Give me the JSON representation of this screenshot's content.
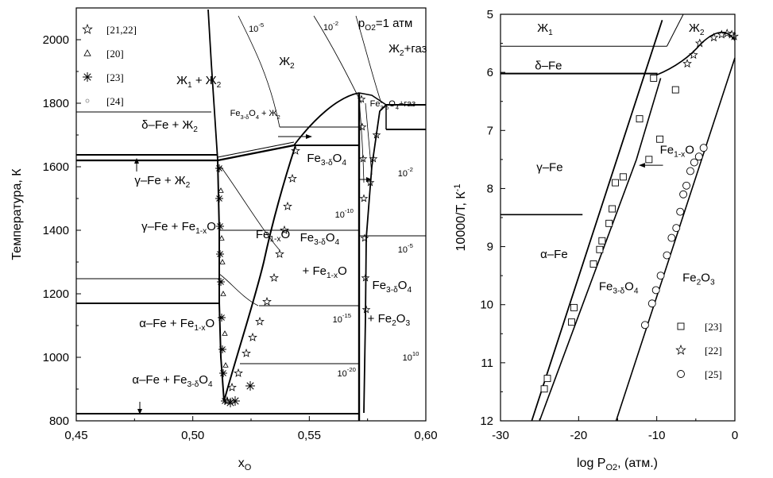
{
  "chart_data": [
    {
      "type": "phase-diagram",
      "xlabel": "x",
      "xlabel_sub": "O",
      "ylabel": "Температура, К",
      "xlim": [
        0.45,
        0.6
      ],
      "ylim": [
        800,
        2100
      ],
      "x_ticks": [
        "0,45",
        "0,50",
        "0,55",
        "0,60"
      ],
      "x_tick_values": [
        0.45,
        0.5,
        0.55,
        0.6
      ],
      "y_ticks": [
        "800",
        "1000",
        "1200",
        "1400",
        "1600",
        "1800",
        "2000"
      ],
      "y_tick_values": [
        800,
        1000,
        1200,
        1400,
        1600,
        1800,
        2000
      ],
      "legend": [
        {
          "marker": "star",
          "label": "[21,22]"
        },
        {
          "marker": "triangle",
          "label": "[20]"
        },
        {
          "marker": "asterisk",
          "label": "[23]"
        },
        {
          "marker": "dot",
          "label": "[24]"
        }
      ],
      "region_labels": [
        {
          "text": "Ж",
          "sub": "1",
          "text2": " + Ж",
          "sub2": "2",
          "x": 0.493,
          "y": 1860
        },
        {
          "text": "δ–Fe + Ж",
          "sub": "2",
          "x": 0.478,
          "y": 1720
        },
        {
          "text": "γ–Fe + Ж",
          "sub": "2",
          "x": 0.475,
          "y": 1545
        },
        {
          "text": "γ–Fe + Fe",
          "sub": "1-x",
          "text2": "O",
          "x": 0.478,
          "y": 1400
        },
        {
          "text": "α–Fe + Fe",
          "sub": "1-x",
          "text2": "O",
          "x": 0.477,
          "y": 1095
        },
        {
          "text": "α–Fe + Fe",
          "sub": "3-δ",
          "text2": "O",
          "sub2": "4",
          "x": 0.474,
          "y": 918
        },
        {
          "text": "Ж",
          "sub": "2",
          "x": 0.537,
          "y": 1920
        },
        {
          "text": "Fe",
          "sub": "1-x",
          "text2": "O",
          "x": 0.527,
          "y": 1375
        },
        {
          "text": "Fe",
          "sub": "3-δ",
          "text2": "O",
          "sub2": "4",
          "x": 0.549,
          "y": 1615
        },
        {
          "text": "Fe",
          "sub": "3-δ",
          "text2": "O",
          "sub2": "4",
          "x": 0.546,
          "y": 1365
        },
        {
          "text": "+ Fe",
          "sub": "1-x",
          "text2": "O",
          "x": 0.547,
          "y": 1260
        },
        {
          "text": "Fe",
          "sub": "3-δ",
          "text2": "O",
          "sub2": "4",
          "x": 0.577,
          "y": 1215
        },
        {
          "text": "+ Fe",
          "sub": "2",
          "text2": "O",
          "sub2": "3",
          "x": 0.575,
          "y": 1110
        },
        {
          "text": "Ж",
          "sub": "2",
          "text2": "+газ",
          "x": 0.584,
          "y": 1960
        },
        {
          "text": "p",
          "sub": "O2",
          "text2": "=1 атм",
          "x": 0.571,
          "y": 2040
        }
      ],
      "small_labels": [
        {
          "text": "Fe",
          "sub": "3-δ",
          "text2": "O",
          "sub2": "4",
          "text3": " + Ж",
          "sub3": "2",
          "x": 0.516,
          "y": 1760
        },
        {
          "text": "Fe",
          "sub": "3-δ",
          "text2": "O",
          "sub2": "4",
          "text3": "+газ",
          "x": 0.576,
          "y": 1790
        }
      ],
      "isobar_labels": [
        {
          "text": "10",
          "sup": "-5",
          "x": 0.524,
          "y": 2025
        },
        {
          "text": "10",
          "sup": "-2",
          "x": 0.556,
          "y": 2030
        },
        {
          "text": "10",
          "sup": "-10",
          "x": 0.561,
          "y": 1440
        },
        {
          "text": "10",
          "sup": "-15",
          "x": 0.56,
          "y": 1110
        },
        {
          "text": "10",
          "sup": "-20",
          "x": 0.562,
          "y": 940
        },
        {
          "text": "10",
          "sup": "-2",
          "x": 0.588,
          "y": 1570
        },
        {
          "text": "10",
          "sup": "-5",
          "x": 0.588,
          "y": 1330
        },
        {
          "text": "10",
          "sup": "10",
          "x": 0.59,
          "y": 990
        }
      ]
    },
    {
      "type": "line",
      "xlabel": "log P",
      "xlabel_sub": "O2",
      "xlabel_suffix": ", (атм.)",
      "ylabel": "10000/T, К",
      "ylabel_sup": "-1",
      "xlim": [
        -30,
        0
      ],
      "ylim": [
        5,
        12
      ],
      "y_inverted": true,
      "x_ticks": [
        "-30",
        "-20",
        "-10",
        "0"
      ],
      "x_tick_values": [
        -30,
        -20,
        -10,
        0
      ],
      "y_ticks": [
        "5",
        "6",
        "7",
        "8",
        "9",
        "10",
        "11",
        "12"
      ],
      "y_tick_values": [
        5,
        6,
        7,
        8,
        9,
        10,
        11,
        12
      ],
      "legend": [
        {
          "marker": "square",
          "label": "[23]"
        },
        {
          "marker": "star",
          "label": "[22]"
        },
        {
          "marker": "circle",
          "label": "[25]"
        }
      ],
      "region_labels": [
        {
          "text": "Ж",
          "sub": "1",
          "x": -25.3,
          "y": 5.3
        },
        {
          "text": "Ж",
          "sub": "2",
          "x": -5.9,
          "y": 5.3
        },
        {
          "text": "δ–Fe",
          "x": -25.6,
          "y": 5.95
        },
        {
          "text": "γ–Fe",
          "x": -25.4,
          "y": 7.7
        },
        {
          "text": "α–Fe",
          "x": -24.9,
          "y": 9.2
        },
        {
          "text": "Fe",
          "sub": "1-x",
          "text2": "O",
          "x": -9.6,
          "y": 7.4
        },
        {
          "text": "Fe",
          "sub": "3-δ",
          "text2": "O",
          "sub2": "4",
          "x": -17.4,
          "y": 9.75
        },
        {
          "text": "Fe",
          "sub": "2",
          "text2": "O",
          "sub2": "3",
          "x": -6.7,
          "y": 9.6
        }
      ],
      "phase_transitions_y": [
        5.55,
        6.02,
        8.45
      ],
      "series": [
        {
          "name": "[23]",
          "marker": "square",
          "x": [
            -24.4,
            -24.0,
            -20.9,
            -20.6,
            -18.1,
            -17.3,
            -17.0,
            -16.1,
            -15.7,
            -15.3,
            -14.3,
            -12.2,
            -11.0,
            -10.4,
            -9.6,
            -7.6
          ],
          "y": [
            11.45,
            11.27,
            10.3,
            10.05,
            9.3,
            9.05,
            8.9,
            8.6,
            8.35,
            7.9,
            7.8,
            6.8,
            7.5,
            6.1,
            7.15,
            6.3
          ]
        },
        {
          "name": "[22]",
          "marker": "star",
          "x": [
            -6.1,
            -5.3,
            -4.5,
            -2.7,
            -1.7,
            -1.0,
            -0.4,
            -0.1
          ],
          "y": [
            5.85,
            5.7,
            5.5,
            5.4,
            5.35,
            5.33,
            5.35,
            5.38
          ]
        },
        {
          "name": "[25]",
          "marker": "circle",
          "x": [
            -11.5,
            -10.6,
            -10.1,
            -9.5,
            -8.7,
            -8.1,
            -7.5,
            -7.0,
            -6.6,
            -6.2,
            -5.7,
            -5.2,
            -4.6,
            -4.0
          ],
          "y": [
            10.35,
            9.98,
            9.75,
            9.5,
            9.15,
            8.85,
            8.68,
            8.4,
            8.1,
            7.95,
            7.7,
            7.55,
            7.45,
            7.3
          ]
        }
      ]
    }
  ]
}
